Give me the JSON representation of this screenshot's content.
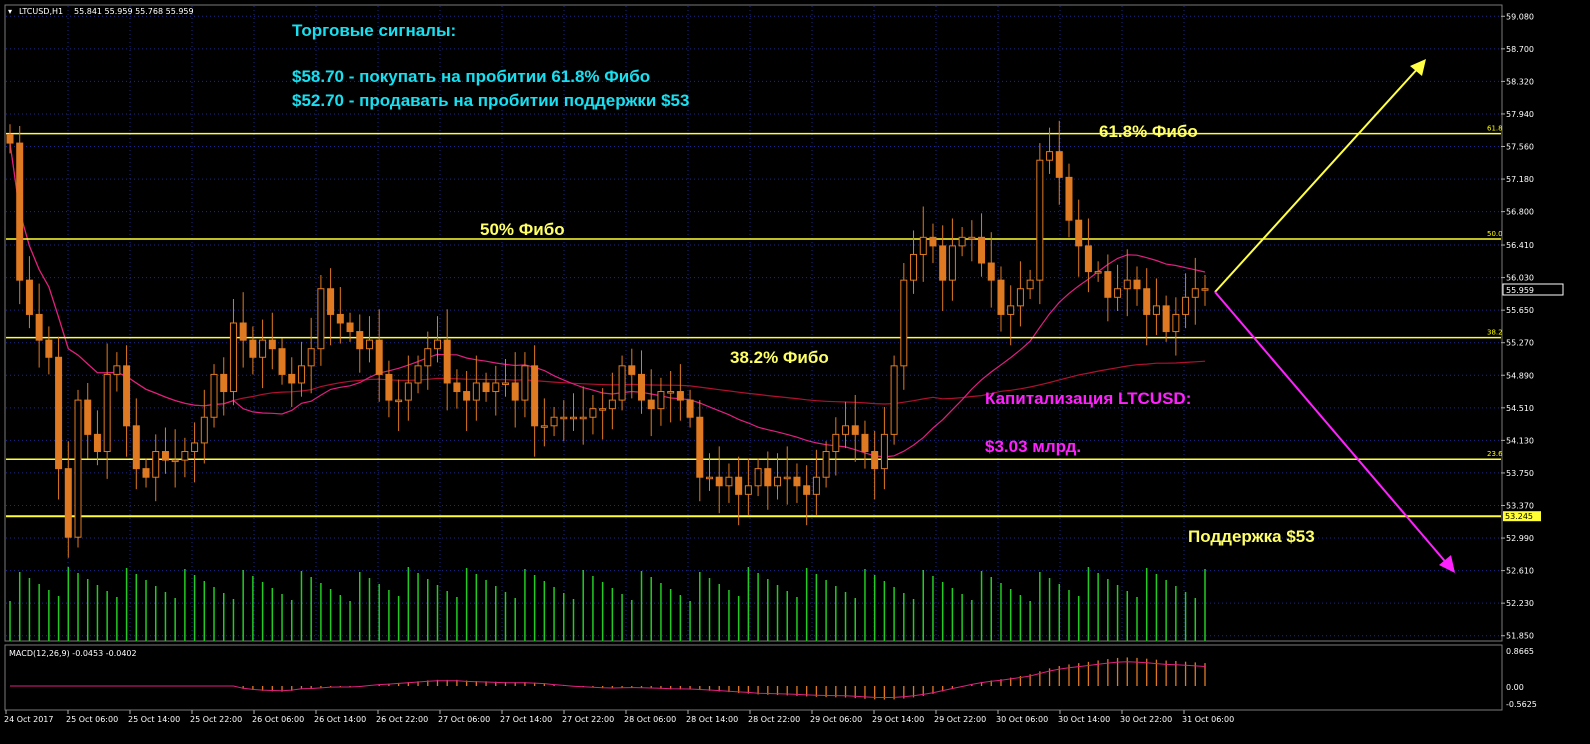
{
  "header": {
    "symbol": "LTCUSD,H1",
    "ohlc": "55.841 55.959 55.768 55.959"
  },
  "annotations": {
    "signals_title": "Торговые сигналы:",
    "signal_buy": "$58.70 - покупать на пробитии 61.8% Фибо",
    "signal_sell": "$52.70 - продавать на пробитии поддержки $53",
    "fibo_618": "61.8% Фибо",
    "fibo_50": "50% Фибо",
    "fibo_382": "38.2% Фибо",
    "cap_title": "Капитализация LTCUSD:",
    "cap_value": "$3.03 млрд.",
    "support": "Поддержка $53"
  },
  "macd": {
    "label": "MACD(12,26,9) -0.0453 -0.0402",
    "ticks": [
      "0.8665",
      "0.00",
      "-0.5625"
    ]
  },
  "price_label": "55.959",
  "colors": {
    "background": "#000000",
    "grid": "#1a2a8a",
    "candle": "#e07a22",
    "ma_fast": "#e02080",
    "ma_slow": "#b01030",
    "fibo": "#ffff33",
    "volume": "#22cc22",
    "arrow_up": "#ffff44",
    "arrow_down": "#ff22ff"
  },
  "chart_data": {
    "type": "candlestick",
    "ylim": [
      51.8,
      59.2
    ],
    "yticks": [
      "59.080",
      "58.700",
      "58.320",
      "57.940",
      "57.560",
      "57.180",
      "56.800",
      "56.410",
      "56.030",
      "55.650",
      "55.270",
      "54.890",
      "54.510",
      "54.130",
      "53.750",
      "53.370",
      "52.990",
      "52.610",
      "52.230",
      "51.850"
    ],
    "xticks": [
      "24 Oct 2017",
      "25 Oct 06:00",
      "25 Oct 14:00",
      "25 Oct 22:00",
      "26 Oct 06:00",
      "26 Oct 14:00",
      "26 Oct 22:00",
      "27 Oct 06:00",
      "27 Oct 14:00",
      "27 Oct 22:00",
      "28 Oct 06:00",
      "28 Oct 14:00",
      "28 Oct 22:00",
      "29 Oct 06:00",
      "29 Oct 14:00",
      "29 Oct 22:00",
      "30 Oct 06:00",
      "30 Oct 14:00",
      "30 Oct 22:00",
      "31 Oct 06:00"
    ],
    "levels": [
      {
        "label": "61.8",
        "value": 57.71
      },
      {
        "label": "50.0",
        "value": 56.48
      },
      {
        "label": "38.2",
        "value": 55.33
      },
      {
        "label": "23.6",
        "value": 53.91
      },
      {
        "label": "53.245",
        "value": 53.245
      }
    ],
    "close": [
      57.6,
      56.0,
      55.6,
      55.3,
      55.1,
      53.8,
      53.0,
      54.6,
      54.2,
      54.0,
      54.9,
      55.0,
      54.3,
      53.8,
      53.7,
      54.0,
      53.9,
      53.9,
      54.0,
      54.1,
      54.4,
      54.9,
      54.7,
      55.5,
      55.3,
      55.1,
      55.3,
      55.2,
      54.9,
      54.8,
      55.0,
      55.2,
      55.9,
      55.6,
      55.5,
      55.4,
      55.2,
      55.3,
      54.9,
      54.6,
      54.6,
      54.8,
      55.0,
      55.2,
      55.3,
      54.8,
      54.7,
      54.6,
      54.8,
      54.7,
      54.8,
      54.8,
      54.6,
      55.0,
      54.3,
      54.3,
      54.4,
      54.4,
      54.4,
      54.4,
      54.5,
      54.5,
      54.6,
      55.0,
      54.9,
      54.6,
      54.5,
      54.7,
      54.7,
      54.6,
      54.4,
      53.7,
      53.7,
      53.6,
      53.7,
      53.5,
      53.6,
      53.8,
      53.6,
      53.7,
      53.7,
      53.6,
      53.5,
      53.7,
      54.0,
      54.2,
      54.3,
      54.2,
      54.0,
      53.8,
      54.2,
      55.0,
      56.0,
      56.3,
      56.5,
      56.4,
      56.0,
      56.4,
      56.5,
      56.5,
      56.2,
      56.0,
      55.6,
      55.7,
      55.9,
      56.0,
      57.4,
      57.5,
      57.2,
      56.7,
      56.4,
      56.1,
      56.1,
      55.8,
      55.9,
      56.0,
      55.9,
      55.6,
      55.7,
      55.4,
      55.6,
      55.8,
      55.9,
      55.9
    ],
    "x_start_label": "24 Oct 2017"
  }
}
